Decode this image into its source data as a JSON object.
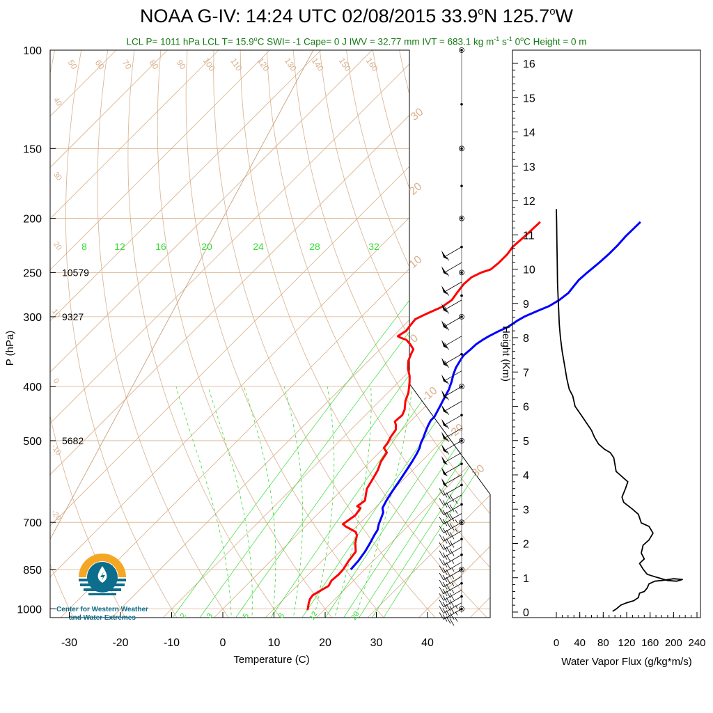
{
  "title": {
    "prefix": "NOAA G-IV: 14:24 UTC 02/08/2015  33.9",
    "lat_hemi": "N 125.7",
    "lon_hemi": "W",
    "deg_symbol": "o"
  },
  "subtitle": {
    "part1": "LCL P= 1011 hPa  LCL T= 15.9",
    "part2": "C  SWI= -1  Cape= 0 J  IWV = 32.77 mm  IVT = 683.1 kg m",
    "exp1": "-1",
    "part3": " s",
    "exp2": "-1",
    "part4": "  0",
    "part5": "C Height = 0 m",
    "deg_symbol": "o"
  },
  "logo": {
    "line1": "Center for Western Weather",
    "line2": "and Water Extremes"
  },
  "colors": {
    "temperature": "#ff0000",
    "dewpoint": "#0000ff",
    "isotherm": "#d8b08c",
    "adiabat": "#d8b08c",
    "mixing_ratio": "#33dd33",
    "subtitle": "#157a15",
    "logo_orange": "#f5a623",
    "logo_teal": "#0c6d8c"
  },
  "chart_data": [
    {
      "type": "line",
      "subtype": "skew-T log-P sounding",
      "xlabel": "Temperature (C)",
      "ylabel": "P (hPa)",
      "x_ticks": [
        "-30",
        "-20",
        "-10",
        "0",
        "10",
        "20",
        "30",
        "40"
      ],
      "y_ticks": [
        "100",
        "150",
        "200",
        "250",
        "300",
        "400",
        "500",
        "700",
        "850",
        "1000"
      ],
      "xlim": [
        -33,
        52
      ],
      "ylim": [
        1050,
        100
      ],
      "y_scale": "log",
      "height_labels": [
        {
          "p": 250,
          "label": "10579"
        },
        {
          "p": 300,
          "label": "9327"
        },
        {
          "p": 500,
          "label": "5682"
        }
      ],
      "mixing_ratio_top_labels": [
        "8",
        "12",
        "16",
        "20",
        "24",
        "28",
        "32"
      ],
      "mixing_ratio_bottom_labels": [
        "2",
        "3",
        "5",
        "8",
        "12",
        "20"
      ],
      "dry_adiabat_labels": [
        "50",
        "60",
        "70",
        "80",
        "90",
        "100",
        "110",
        "120",
        "130",
        "140",
        "150",
        "160"
      ],
      "isotherm_labels": [
        "40",
        "30",
        "20",
        "10",
        "0",
        "-10",
        "-20"
      ],
      "series": [
        {
          "name": "temperature",
          "points": [
            [
              16.8,
              1005
            ],
            [
              16.2,
              990
            ],
            [
              15.6,
              975
            ],
            [
              15.1,
              960
            ],
            [
              14.9,
              945
            ],
            [
              15.6,
              925
            ],
            [
              16.2,
              910
            ],
            [
              15.7,
              890
            ],
            [
              15.9,
              868
            ],
            [
              15.8,
              850
            ],
            [
              15.2,
              820
            ],
            [
              14.8,
              790
            ],
            [
              13.0,
              762
            ],
            [
              11.8,
              738
            ],
            [
              10.9,
              728
            ],
            [
              9.4,
              720
            ],
            [
              7.9,
              712
            ],
            [
              6.9,
              705
            ],
            [
              7.6,
              680
            ],
            [
              7.2,
              660
            ],
            [
              6.2,
              655
            ],
            [
              6.6,
              640
            ],
            [
              4.7,
              610
            ],
            [
              3.9,
              585
            ],
            [
              3.2,
              565
            ],
            [
              2.1,
              545
            ],
            [
              1.5,
              525
            ],
            [
              0.0,
              515
            ],
            [
              -0.2,
              505
            ],
            [
              -0.8,
              492
            ],
            [
              -1.2,
              478
            ],
            [
              -2.2,
              468
            ],
            [
              -3.0,
              462
            ],
            [
              -2.8,
              450
            ],
            [
              -3.4,
              440
            ],
            [
              -4.9,
              425
            ],
            [
              -6.0,
              410
            ],
            [
              -7.8,
              393
            ],
            [
              -9.0,
              383
            ],
            [
              -10.7,
              372
            ],
            [
              -12.2,
              360
            ],
            [
              -13.0,
              350
            ],
            [
              -13.5,
              343
            ],
            [
              -15.1,
              336
            ],
            [
              -16.7,
              330
            ],
            [
              -18.3,
              327
            ],
            [
              -19.1,
              325
            ],
            [
              -18.5,
              318
            ],
            [
              -18.8,
              310
            ],
            [
              -19.0,
              303
            ],
            [
              -17.8,
              296
            ],
            [
              -16.2,
              288
            ],
            [
              -15.6,
              280
            ],
            [
              -16.0,
              272
            ],
            [
              -16.4,
              262
            ],
            [
              -16.2,
              255
            ],
            [
              -15.2,
              250
            ],
            [
              -14.0,
              247
            ],
            [
              -13.7,
              240
            ],
            [
              -13.7,
              232
            ],
            [
              -14.1,
              225
            ],
            [
              -13.8,
              215
            ],
            [
              -13.6,
              203
            ]
          ]
        },
        {
          "name": "dewpoint",
          "points": [
            [
              17.3,
              850
            ],
            [
              17.1,
              820
            ],
            [
              16.6,
              790
            ],
            [
              15.9,
              762
            ],
            [
              15.2,
              738
            ],
            [
              14.8,
              722
            ],
            [
              13.9,
              705
            ],
            [
              13.2,
              688
            ],
            [
              12.5,
              672
            ],
            [
              11.5,
              660
            ],
            [
              10.8,
              640
            ],
            [
              10.1,
              615
            ],
            [
              9.5,
              590
            ],
            [
              8.8,
              565
            ],
            [
              8.2,
              545
            ],
            [
              7.6,
              528
            ],
            [
              7.0,
              515
            ],
            [
              6.3,
              505
            ],
            [
              5.8,
              495
            ],
            [
              5.0,
              482
            ],
            [
              4.3,
              470
            ],
            [
              3.8,
              460
            ],
            [
              3.8,
              453
            ],
            [
              3.4,
              445
            ],
            [
              2.9,
              435
            ],
            [
              2.0,
              418
            ],
            [
              1.3,
              405
            ],
            [
              0.3,
              392
            ],
            [
              -0.8,
              380
            ],
            [
              -1.6,
              370
            ],
            [
              -2.1,
              360
            ],
            [
              -2.5,
              352
            ],
            [
              -2.3,
              343
            ],
            [
              -2.2,
              336
            ],
            [
              -1.8,
              330
            ],
            [
              -1.3,
              325
            ],
            [
              -0.3,
              318
            ],
            [
              0.6,
              313
            ],
            [
              1.2,
              305
            ],
            [
              1.8,
              300
            ],
            [
              3.2,
              293
            ],
            [
              4.6,
              287
            ],
            [
              5.4,
              280
            ],
            [
              5.8,
              272
            ],
            [
              5.5,
              264
            ],
            [
              5.3,
              258
            ],
            [
              5.5,
              250
            ],
            [
              5.9,
              240
            ],
            [
              6.1,
              232
            ],
            [
              6.1,
              224
            ],
            [
              5.9,
              215
            ],
            [
              6.0,
              203
            ]
          ]
        }
      ],
      "wind_barbs": [
        {
          "p": 1000,
          "kt": 40
        },
        {
          "p": 975,
          "kt": 45
        },
        {
          "p": 950,
          "kt": 45
        },
        {
          "p": 925,
          "kt": 45
        },
        {
          "p": 900,
          "kt": 40
        },
        {
          "p": 875,
          "kt": 35
        },
        {
          "p": 850,
          "kt": 35
        },
        {
          "p": 825,
          "kt": 35
        },
        {
          "p": 800,
          "kt": 35
        },
        {
          "p": 775,
          "kt": 35
        },
        {
          "p": 750,
          "kt": 40
        },
        {
          "p": 725,
          "kt": 40
        },
        {
          "p": 700,
          "kt": 40
        },
        {
          "p": 675,
          "kt": 45
        },
        {
          "p": 650,
          "kt": 45
        },
        {
          "p": 625,
          "kt": 45
        },
        {
          "p": 600,
          "kt": 45
        },
        {
          "p": 575,
          "kt": 50
        },
        {
          "p": 550,
          "kt": 50
        },
        {
          "p": 525,
          "kt": 50
        },
        {
          "p": 500,
          "kt": 55
        },
        {
          "p": 475,
          "kt": 55
        },
        {
          "p": 450,
          "kt": 55
        },
        {
          "p": 425,
          "kt": 55
        },
        {
          "p": 400,
          "kt": 55
        },
        {
          "p": 375,
          "kt": 55
        },
        {
          "p": 350,
          "kt": 60
        },
        {
          "p": 325,
          "kt": 60
        },
        {
          "p": 300,
          "kt": 60
        },
        {
          "p": 280,
          "kt": 60
        },
        {
          "p": 260,
          "kt": 55
        },
        {
          "p": 240,
          "kt": 55
        },
        {
          "p": 225,
          "kt": 55
        }
      ]
    },
    {
      "type": "line",
      "subtype": "vertical profile",
      "xlabel": "Water Vapor Flux (g/kg*m/s)",
      "ylabel": "Height (Km)",
      "x_ticks": [
        "0",
        "40",
        "80",
        "120",
        "160",
        "200",
        "240"
      ],
      "y_ticks": [
        "0",
        "1",
        "2",
        "3",
        "4",
        "5",
        "6",
        "7",
        "8",
        "9",
        "10",
        "11",
        "12",
        "13",
        "14",
        "15",
        "16"
      ],
      "xlim": [
        0,
        240
      ],
      "ylim": [
        0,
        16.3
      ],
      "series": [
        {
          "name": "water vapor flux",
          "points": [
            [
              96,
              0.02
            ],
            [
              103,
              0.1
            ],
            [
              110,
              0.2
            ],
            [
              120,
              0.27
            ],
            [
              132,
              0.33
            ],
            [
              140,
              0.42
            ],
            [
              142,
              0.55
            ],
            [
              150,
              0.6
            ],
            [
              155,
              0.7
            ],
            [
              158,
              0.82
            ],
            [
              168,
              0.9
            ],
            [
              180,
              0.92
            ],
            [
              200,
              0.97
            ],
            [
              215,
              0.95
            ],
            [
              205,
              0.9
            ],
            [
              190,
              0.92
            ],
            [
              170,
              1.02
            ],
            [
              155,
              1.1
            ],
            [
              148,
              1.25
            ],
            [
              142,
              1.42
            ],
            [
              150,
              1.55
            ],
            [
              145,
              1.72
            ],
            [
              148,
              1.95
            ],
            [
              158,
              2.1
            ],
            [
              165,
              2.3
            ],
            [
              158,
              2.5
            ],
            [
              145,
              2.6
            ],
            [
              140,
              2.85
            ],
            [
              130,
              3.0
            ],
            [
              115,
              3.2
            ],
            [
              112,
              3.35
            ],
            [
              118,
              3.6
            ],
            [
              122,
              3.8
            ],
            [
              112,
              3.95
            ],
            [
              102,
              4.1
            ],
            [
              100,
              4.3
            ],
            [
              98,
              4.5
            ],
            [
              92,
              4.65
            ],
            [
              82,
              4.75
            ],
            [
              72,
              4.9
            ],
            [
              65,
              5.1
            ],
            [
              60,
              5.3
            ],
            [
              52,
              5.5
            ],
            [
              42,
              5.75
            ],
            [
              32,
              6.0
            ],
            [
              28,
              6.3
            ],
            [
              22,
              6.5
            ],
            [
              18,
              6.8
            ],
            [
              14,
              7.2
            ],
            [
              10,
              7.6
            ],
            [
              7,
              8.0
            ],
            [
              5,
              8.4
            ],
            [
              4,
              8.8
            ],
            [
              3,
              9.2
            ],
            [
              2,
              9.6
            ],
            [
              1.5,
              10.2
            ],
            [
              1,
              10.8
            ],
            [
              0.5,
              11.4
            ],
            [
              0,
              11.75
            ]
          ]
        }
      ]
    }
  ]
}
